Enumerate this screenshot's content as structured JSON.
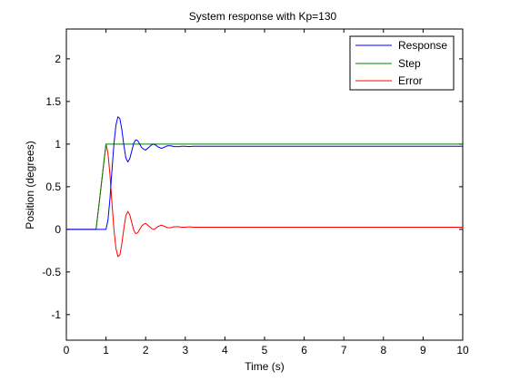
{
  "chart_data": {
    "type": "line",
    "title": "System response with Kp=130",
    "xlabel": "Time (s)",
    "ylabel": "Position (degrees)",
    "xlim": [
      0,
      10
    ],
    "ylim": [
      -1.3,
      2.35
    ],
    "xticks": [
      "0",
      "1",
      "2",
      "3",
      "4",
      "5",
      "6",
      "7",
      "8",
      "9",
      "10"
    ],
    "yticks": [
      "-1",
      "-0.5",
      "0",
      "0.5",
      "1",
      "1.5",
      "2"
    ],
    "ytick_values": [
      -1,
      -0.5,
      0,
      0.5,
      1,
      1.5,
      2
    ],
    "grid": false,
    "legend_position": "top-right",
    "series": [
      {
        "name": "Response",
        "color": "#0000ff",
        "x": [
          0,
          1.0,
          1.05,
          1.1,
          1.15,
          1.2,
          1.25,
          1.3,
          1.35,
          1.4,
          1.45,
          1.5,
          1.55,
          1.6,
          1.65,
          1.7,
          1.75,
          1.8,
          1.85,
          1.9,
          1.95,
          2.0,
          2.05,
          2.1,
          2.15,
          2.2,
          2.25,
          2.3,
          2.35,
          2.4,
          2.45,
          2.5,
          2.55,
          2.6,
          2.65,
          2.7,
          2.75,
          2.8,
          2.85,
          2.9,
          3.0,
          3.1,
          3.2,
          3.3,
          3.4,
          3.5,
          4.0,
          5.0,
          6.0,
          7.0,
          8.0,
          9.0,
          10.0
        ],
        "y": [
          0,
          0,
          0.11,
          0.36,
          0.69,
          1.0,
          1.22,
          1.32,
          1.3,
          1.17,
          0.99,
          0.84,
          0.79,
          0.83,
          0.92,
          1.01,
          1.05,
          1.04,
          1.0,
          0.96,
          0.94,
          0.93,
          0.95,
          0.97,
          0.99,
          1.0,
          0.99,
          0.97,
          0.96,
          0.95,
          0.96,
          0.97,
          0.98,
          0.98,
          0.98,
          0.97,
          0.97,
          0.97,
          0.97,
          0.975,
          0.975,
          0.97,
          0.975,
          0.975,
          0.975,
          0.975,
          0.975,
          0.975,
          0.975,
          0.975,
          0.975,
          0.975,
          0.975
        ]
      },
      {
        "name": "Step",
        "color": "#008000",
        "x": [
          0,
          0.75,
          1.0,
          10.0
        ],
        "y": [
          0,
          0,
          1,
          1
        ]
      },
      {
        "name": "Error",
        "color": "#ff0000",
        "x": [
          0,
          0.75,
          1.0,
          1.05,
          1.1,
          1.15,
          1.2,
          1.25,
          1.3,
          1.35,
          1.4,
          1.45,
          1.5,
          1.55,
          1.6,
          1.65,
          1.7,
          1.75,
          1.8,
          1.85,
          1.9,
          1.95,
          2.0,
          2.05,
          2.1,
          2.15,
          2.2,
          2.25,
          2.3,
          2.35,
          2.4,
          2.45,
          2.5,
          2.55,
          2.6,
          2.65,
          2.7,
          2.75,
          2.8,
          2.85,
          2.9,
          3.0,
          3.1,
          3.2,
          3.3,
          3.4,
          3.5,
          4.0,
          5.0,
          6.0,
          7.0,
          8.0,
          9.0,
          10.0
        ],
        "y": [
          0,
          0,
          1.0,
          0.89,
          0.64,
          0.31,
          0.0,
          -0.22,
          -0.32,
          -0.3,
          -0.17,
          0.01,
          0.16,
          0.21,
          0.17,
          0.08,
          -0.01,
          -0.05,
          -0.04,
          0.0,
          0.04,
          0.06,
          0.07,
          0.05,
          0.03,
          0.01,
          0.0,
          0.01,
          0.03,
          0.04,
          0.05,
          0.04,
          0.03,
          0.02,
          0.02,
          0.02,
          0.03,
          0.03,
          0.03,
          0.03,
          0.025,
          0.025,
          0.03,
          0.025,
          0.025,
          0.025,
          0.025,
          0.025,
          0.025,
          0.025,
          0.025,
          0.025,
          0.025,
          0.025
        ]
      }
    ]
  }
}
